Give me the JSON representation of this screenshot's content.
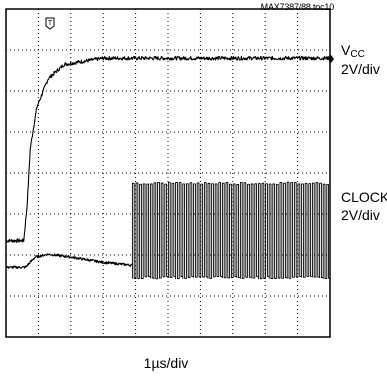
{
  "header": {
    "figure_ref": "MAX7387/88 toc10"
  },
  "channels": {
    "vcc": {
      "name_main": "V",
      "name_sub": "CC",
      "scale": "2V/div"
    },
    "clock": {
      "name": "CLOCK",
      "scale": "2V/div"
    }
  },
  "xaxis": {
    "scale": "1µs/div"
  },
  "chart_data": {
    "type": "line",
    "title": "",
    "grid": true,
    "x_divisions": 10,
    "y_divisions": 8,
    "x_unit_per_div": "1µs",
    "y_unit_per_div": "2V",
    "trigger_marker": "T",
    "series": [
      {
        "name": "VCC",
        "points_div": [
          [
            0.0,
            2.35
          ],
          [
            0.55,
            2.35
          ],
          [
            0.65,
            3.2
          ],
          [
            0.75,
            4.6
          ],
          [
            0.95,
            5.6
          ],
          [
            1.3,
            6.3
          ],
          [
            1.8,
            6.65
          ],
          [
            3.0,
            6.8
          ],
          [
            10.0,
            6.8
          ]
        ]
      },
      {
        "name": "CLOCK",
        "idle_level_div": 1.7,
        "bump_points_div": [
          [
            0.0,
            1.7
          ],
          [
            0.6,
            1.7
          ],
          [
            0.9,
            1.95
          ],
          [
            1.3,
            2.02
          ],
          [
            2.0,
            1.95
          ],
          [
            3.0,
            1.82
          ],
          [
            3.9,
            1.75
          ]
        ],
        "toggle_start_div": 3.9,
        "low_level_div": 1.45,
        "high_level_div": 3.75,
        "pulses_per_div": 9
      }
    ]
  }
}
